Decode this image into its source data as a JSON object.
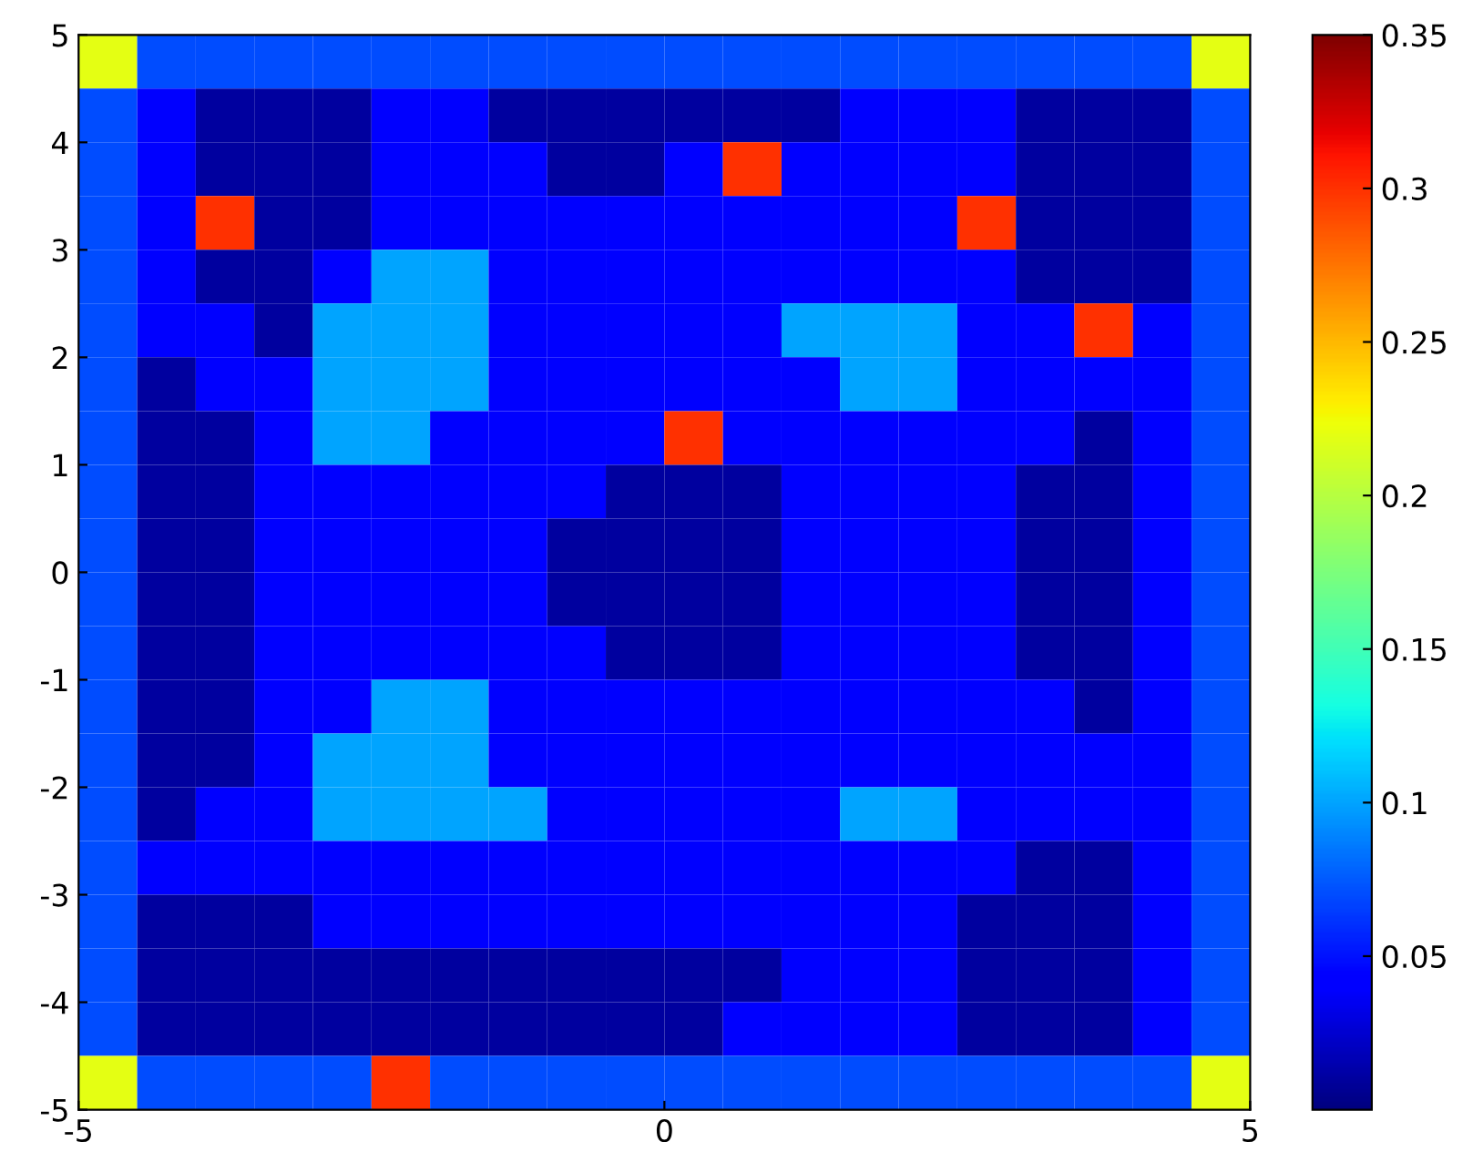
{
  "chart_data": {
    "type": "heatmap",
    "x": [
      -4.75,
      -4.25,
      -3.75,
      -3.25,
      -2.75,
      -2.25,
      -1.75,
      -1.25,
      -0.75,
      -0.25,
      0.25,
      0.75,
      1.25,
      1.75,
      2.25,
      2.75,
      3.25,
      3.75,
      4.25,
      4.75
    ],
    "y": [
      4.75,
      4.25,
      3.75,
      3.25,
      2.75,
      2.25,
      1.75,
      1.25,
      0.75,
      0.25,
      -0.25,
      -0.75,
      -1.25,
      -1.75,
      -2.25,
      -2.75,
      -3.25,
      -3.75,
      -4.25,
      -4.75
    ],
    "xlim": [
      -5,
      5
    ],
    "xticks": [
      -5,
      0,
      5
    ],
    "ylim": [
      -5,
      5
    ],
    "yticks": [
      -5,
      -4,
      -3,
      -2,
      -1,
      0,
      1,
      2,
      3,
      4,
      5
    ],
    "clim": [
      0,
      0.35
    ],
    "cticks": [
      0.05,
      0.1,
      0.15,
      0.2,
      0.25,
      0.3,
      0.35
    ],
    "cells": [
      [
        0.22,
        0.07,
        0.07,
        0.07,
        0.07,
        0.07,
        0.07,
        0.07,
        0.07,
        0.07,
        0.07,
        0.07,
        0.07,
        0.07,
        0.07,
        0.07,
        0.07,
        0.07,
        0.07,
        0.22
      ],
      [
        0.07,
        0.04,
        0.01,
        0.01,
        0.01,
        0.04,
        0.04,
        0.01,
        0.01,
        0.01,
        0.01,
        0.01,
        0.01,
        0.04,
        0.04,
        0.04,
        0.01,
        0.01,
        0.01,
        0.07
      ],
      [
        0.07,
        0.04,
        0.01,
        0.01,
        0.01,
        0.04,
        0.04,
        0.04,
        0.01,
        0.01,
        0.04,
        0.3,
        0.04,
        0.04,
        0.04,
        0.04,
        0.01,
        0.01,
        0.01,
        0.07
      ],
      [
        0.07,
        0.04,
        0.3,
        0.01,
        0.01,
        0.04,
        0.04,
        0.04,
        0.04,
        0.04,
        0.04,
        0.04,
        0.04,
        0.04,
        0.04,
        0.3,
        0.01,
        0.01,
        0.01,
        0.07
      ],
      [
        0.07,
        0.04,
        0.01,
        0.01,
        0.04,
        0.1,
        0.1,
        0.04,
        0.04,
        0.04,
        0.04,
        0.04,
        0.04,
        0.04,
        0.04,
        0.04,
        0.01,
        0.01,
        0.01,
        0.07
      ],
      [
        0.07,
        0.04,
        0.04,
        0.01,
        0.1,
        0.1,
        0.1,
        0.04,
        0.04,
        0.04,
        0.04,
        0.04,
        0.1,
        0.1,
        0.1,
        0.04,
        0.04,
        0.3,
        0.04,
        0.07
      ],
      [
        0.07,
        0.01,
        0.04,
        0.04,
        0.1,
        0.1,
        0.1,
        0.04,
        0.04,
        0.04,
        0.04,
        0.04,
        0.04,
        0.1,
        0.1,
        0.04,
        0.04,
        0.04,
        0.04,
        0.07
      ],
      [
        0.07,
        0.01,
        0.01,
        0.04,
        0.1,
        0.1,
        0.04,
        0.04,
        0.04,
        0.04,
        0.3,
        0.04,
        0.04,
        0.04,
        0.04,
        0.04,
        0.04,
        0.01,
        0.04,
        0.07
      ],
      [
        0.07,
        0.01,
        0.01,
        0.04,
        0.04,
        0.04,
        0.04,
        0.04,
        0.04,
        0.01,
        0.01,
        0.01,
        0.04,
        0.04,
        0.04,
        0.04,
        0.01,
        0.01,
        0.04,
        0.07
      ],
      [
        0.07,
        0.01,
        0.01,
        0.04,
        0.04,
        0.04,
        0.04,
        0.04,
        0.01,
        0.01,
        0.01,
        0.01,
        0.04,
        0.04,
        0.04,
        0.04,
        0.01,
        0.01,
        0.04,
        0.07
      ],
      [
        0.07,
        0.01,
        0.01,
        0.04,
        0.04,
        0.04,
        0.04,
        0.04,
        0.01,
        0.01,
        0.01,
        0.01,
        0.04,
        0.04,
        0.04,
        0.04,
        0.01,
        0.01,
        0.04,
        0.07
      ],
      [
        0.07,
        0.01,
        0.01,
        0.04,
        0.04,
        0.04,
        0.04,
        0.04,
        0.04,
        0.01,
        0.01,
        0.01,
        0.04,
        0.04,
        0.04,
        0.04,
        0.01,
        0.01,
        0.04,
        0.07
      ],
      [
        0.07,
        0.01,
        0.01,
        0.04,
        0.04,
        0.1,
        0.1,
        0.04,
        0.04,
        0.04,
        0.04,
        0.04,
        0.04,
        0.04,
        0.04,
        0.04,
        0.04,
        0.01,
        0.04,
        0.07
      ],
      [
        0.07,
        0.01,
        0.01,
        0.04,
        0.1,
        0.1,
        0.1,
        0.04,
        0.04,
        0.04,
        0.04,
        0.04,
        0.04,
        0.04,
        0.04,
        0.04,
        0.04,
        0.04,
        0.04,
        0.07
      ],
      [
        0.07,
        0.01,
        0.04,
        0.04,
        0.1,
        0.1,
        0.1,
        0.1,
        0.04,
        0.04,
        0.04,
        0.04,
        0.04,
        0.1,
        0.1,
        0.04,
        0.04,
        0.04,
        0.04,
        0.07
      ],
      [
        0.07,
        0.04,
        0.04,
        0.04,
        0.04,
        0.04,
        0.04,
        0.04,
        0.04,
        0.04,
        0.04,
        0.04,
        0.04,
        0.04,
        0.04,
        0.04,
        0.01,
        0.01,
        0.04,
        0.07
      ],
      [
        0.07,
        0.01,
        0.01,
        0.01,
        0.04,
        0.04,
        0.04,
        0.04,
        0.04,
        0.04,
        0.04,
        0.04,
        0.04,
        0.04,
        0.04,
        0.01,
        0.01,
        0.01,
        0.04,
        0.07
      ],
      [
        0.07,
        0.01,
        0.01,
        0.01,
        0.01,
        0.01,
        0.01,
        0.01,
        0.01,
        0.01,
        0.01,
        0.01,
        0.04,
        0.04,
        0.04,
        0.01,
        0.01,
        0.01,
        0.04,
        0.07
      ],
      [
        0.07,
        0.01,
        0.01,
        0.01,
        0.01,
        0.01,
        0.01,
        0.01,
        0.01,
        0.01,
        0.01,
        0.04,
        0.04,
        0.04,
        0.04,
        0.01,
        0.01,
        0.01,
        0.04,
        0.07
      ],
      [
        0.22,
        0.07,
        0.07,
        0.07,
        0.07,
        0.3,
        0.07,
        0.07,
        0.07,
        0.07,
        0.07,
        0.07,
        0.07,
        0.07,
        0.07,
        0.07,
        0.07,
        0.07,
        0.07,
        0.22
      ]
    ]
  }
}
